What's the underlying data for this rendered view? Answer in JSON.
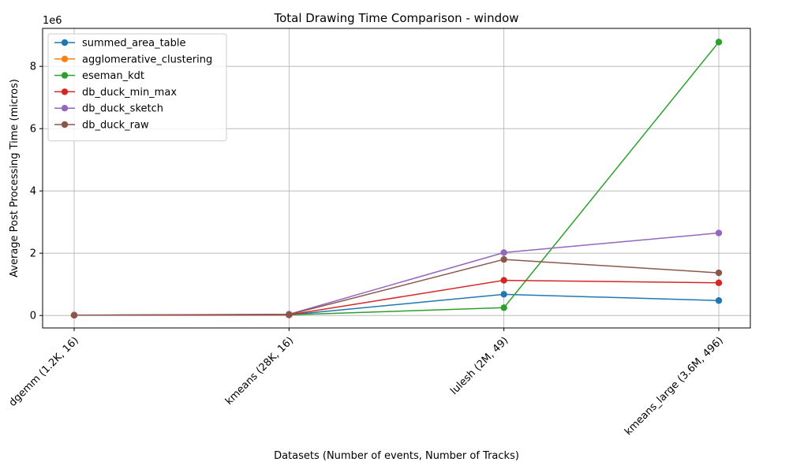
{
  "chart_data": {
    "type": "line",
    "title": "Total Drawing Time Comparison - window",
    "xlabel": "Datasets (Number of events, Number of Tracks)",
    "ylabel": "Average Post Processing Time (micros)",
    "y_multiplier_label": "1e6",
    "categories": [
      "dgemm (1.2K, 16)",
      "kmeans (28K, 16)",
      "lulesh (2M, 49)",
      "kmeans_large (3.6M, 496)"
    ],
    "y_ticks": [
      0,
      2000000,
      4000000,
      6000000,
      8000000
    ],
    "y_tick_labels": [
      "0",
      "2",
      "4",
      "6",
      "8"
    ],
    "ylim": [
      -400000,
      9220000
    ],
    "grid": true,
    "legend_position": "top-left",
    "series": [
      {
        "name": "summed_area_table",
        "color": "#1f77b4",
        "values": [
          10000,
          20000,
          680000,
          480000
        ]
      },
      {
        "name": "agglomerative_clustering",
        "color": "#ff7f0e",
        "values": [
          10000,
          20000,
          null,
          null
        ]
      },
      {
        "name": "eseman_kdt",
        "color": "#2ca02c",
        "values": [
          10000,
          20000,
          250000,
          8780000
        ]
      },
      {
        "name": "db_duck_min_max",
        "color": "#d62728",
        "values": [
          10000,
          20000,
          1130000,
          1050000
        ]
      },
      {
        "name": "db_duck_sketch",
        "color": "#9467bd",
        "values": [
          10000,
          40000,
          2020000,
          2650000
        ]
      },
      {
        "name": "db_duck_raw",
        "color": "#8c564b",
        "values": [
          10000,
          30000,
          1800000,
          1370000
        ]
      }
    ]
  }
}
